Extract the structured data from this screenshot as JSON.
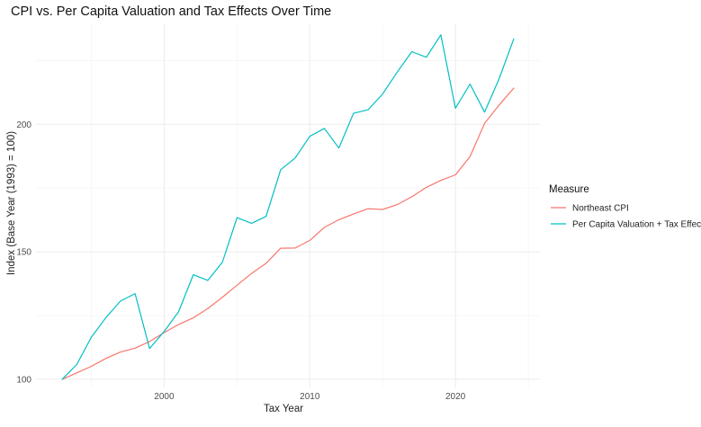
{
  "chart_data": {
    "type": "line",
    "title": "CPI vs. Per Capita Valuation and Tax Effects Over Time",
    "xlabel": "Tax Year",
    "ylabel": "Index (Base Year (1993) = 100)",
    "xlim": [
      1991.2,
      2025.8
    ],
    "ylim": [
      96.8,
      239.6
    ],
    "x_major_ticks": [
      2000,
      2010,
      2020
    ],
    "x_minor_ticks": [
      1995,
      2005,
      2015,
      2025
    ],
    "y_major_ticks": [
      100,
      150,
      200
    ],
    "y_minor_ticks": [
      125,
      175,
      225
    ],
    "x_tick_labels": [
      "2000",
      "2010",
      "2020"
    ],
    "y_tick_labels": [
      "100",
      "150",
      "200"
    ],
    "grid": true,
    "legend": {
      "title": "Measure",
      "position": "right"
    },
    "x": [
      1993,
      1994,
      1995,
      1996,
      1997,
      1998,
      1999,
      2000,
      2001,
      2002,
      2003,
      2004,
      2005,
      2006,
      2007,
      2008,
      2009,
      2010,
      2011,
      2012,
      2013,
      2014,
      2015,
      2016,
      2017,
      2018,
      2019,
      2020,
      2021,
      2022,
      2023,
      2024
    ],
    "series": [
      {
        "name": "Northeast CPI",
        "color": "#F8766D",
        "values": [
          100,
          102.5,
          105.1,
          108.2,
          110.7,
          112.2,
          114.8,
          118.3,
          121.5,
          124.1,
          127.8,
          132.2,
          136.9,
          141.5,
          145.5,
          151.4,
          151.5,
          154.5,
          159.6,
          162.6,
          164.8,
          166.9,
          166.6,
          168.5,
          171.6,
          175.3,
          178.0,
          180.2,
          187.3,
          200.4,
          207.6,
          214.2
        ]
      },
      {
        "name": "Per Capita Valuation + Tax Effects",
        "color": "#00BFC4",
        "values": [
          100,
          105.8,
          116.5,
          124.2,
          130.7,
          133.6,
          112.1,
          118.7,
          126.6,
          141.0,
          138.8,
          146.0,
          163.4,
          161.2,
          163.9,
          182.2,
          186.8,
          195.3,
          198.4,
          190.7,
          204.3,
          205.7,
          211.9,
          220.5,
          228.5,
          226.3,
          235.1,
          206.3,
          215.8,
          204.8,
          217.9,
          233.5
        ]
      }
    ]
  }
}
